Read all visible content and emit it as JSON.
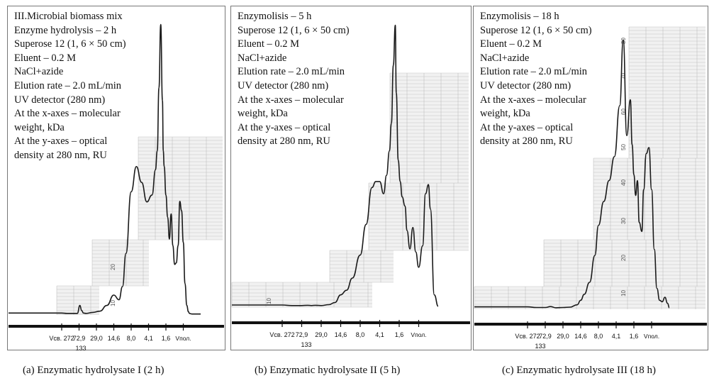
{
  "panels": [
    {
      "caption": "(a) Enzymatic hydrolysate I (2 h)",
      "info": [
        "III.Microbial biomass mix",
        "Enzyme hydrolysis – 2 h",
        "Superose 12 (1, 6 × 50 cm)",
        "Eluent – 0.2 M",
        "NaCl+azide",
        "Elution rate – 2.0 mL/min",
        "UV detector (280 nm)",
        "At the x-axes – molecular",
        "weight, kDa",
        "At the y-axes – optical",
        "density at 280 nm, RU"
      ],
      "grid_labels": [
        "20",
        "10"
      ]
    },
    {
      "caption": "(b) Enzymatic hydrolysate II (5 h)",
      "info": [
        "Enzymolisis – 5 h",
        "Superose 12 (1, 6 × 50 cm)",
        "Eluent – 0.2 M",
        "NaCl+azide",
        "Elution rate – 2.0 mL/min",
        "UV detector (280 nm)",
        "At the x-axes – molecular",
        "weight, kDa",
        "At the y-axes – optical",
        "density at 280 nm, RU"
      ],
      "grid_labels": [
        "10"
      ]
    },
    {
      "caption": "(c)  Enzymatic hydrolysate III (18 h)",
      "info": [
        "Enzymolisis – 18 h",
        "Superose 12 (1, 6 × 50 cm)",
        "Eluent – 0.2 M",
        "NaCl+azide",
        "Elution rate – 2.0 mL/min",
        "UV detector (280 nm)",
        "At the x-axes – molecular",
        "weight, kDa",
        "At the y-axes – optical",
        "density at 280 nm, RU"
      ],
      "grid_labels": [
        "80",
        "70",
        "60",
        "50",
        "40",
        "30",
        "20",
        "10"
      ]
    }
  ],
  "x_ticks": [
    "Vсв. 272",
    "72,9",
    "29,0",
    "14,6",
    "8,0",
    "4,1",
    "1,6",
    "Vпол."
  ],
  "x_sublabel": "133",
  "chart_data": [
    {
      "type": "line",
      "title": "(a) Enzymatic hydrolysate I (2 h)",
      "xlabel": "molecular weight, kDa",
      "ylabel": "optical density at 280 nm, RU",
      "categories": [
        "Vсв. 272",
        "72,9",
        "29,0",
        "14,6",
        "8,0",
        "4,1",
        "1,6",
        "Vпол."
      ],
      "ylim": [
        0,
        90
      ],
      "x": [
        0,
        0.3,
        0.6,
        0.9,
        1.05,
        1.15,
        1.25,
        1.4,
        1.8,
        2.2,
        2.6,
        3.0,
        3.3,
        3.5,
        3.7,
        4.0,
        4.3,
        4.6,
        4.9,
        5.2,
        5.4,
        5.5,
        5.6,
        5.7,
        5.8,
        5.85,
        5.9,
        6.0,
        6.1,
        6.2,
        6.3,
        6.4,
        6.5,
        6.6,
        6.7,
        6.8,
        6.9,
        7.0,
        7.1,
        7.2,
        7.3,
        7.35,
        7.4,
        7.5,
        7.6,
        7.8,
        8.0
      ],
      "y": [
        0.6,
        0.5,
        0.5,
        0.5,
        3.0,
        1.4,
        0.6,
        0.5,
        0.8,
        1.2,
        3.0,
        6.3,
        4.8,
        9.0,
        19.5,
        39.0,
        47.0,
        42.0,
        35.8,
        38.0,
        46.0,
        52.0,
        72.0,
        92.0,
        68.0,
        52.0,
        47.0,
        38.0,
        31.0,
        24.0,
        32.0,
        22.0,
        16.0,
        16.5,
        22.0,
        36.0,
        33.0,
        23.0,
        10.0,
        3.0,
        1.0,
        0.5,
        0.4,
        0.3,
        0.3,
        0.3,
        0.3
      ]
    },
    {
      "type": "line",
      "title": "(b) Enzymatic hydrolysate II (5 h)",
      "xlabel": "molecular weight, kDa",
      "ylabel": "optical density at 280 nm, RU",
      "categories": [
        "Vсв. 272",
        "72,9",
        "29,0",
        "14,6",
        "8,0",
        "4,1",
        "1,6",
        "Vпол."
      ],
      "ylim": [
        0,
        90
      ],
      "x": [
        0,
        0.5,
        1.0,
        1.3,
        1.5,
        1.7,
        2.0,
        2.4,
        2.7,
        3.0,
        3.3,
        3.6,
        4.0,
        4.3,
        4.6,
        4.8,
        5.0,
        5.2,
        5.35,
        5.5,
        5.6,
        5.7,
        5.8,
        5.85,
        5.95,
        6.05,
        6.15,
        6.3,
        6.4,
        6.55,
        6.7,
        6.85,
        7.0,
        7.2,
        7.35,
        7.5,
        7.6,
        7.8,
        8.0
      ],
      "y": [
        0.7,
        0.5,
        0.5,
        0.6,
        0.5,
        0.6,
        0.5,
        0.8,
        1.5,
        4.0,
        5.5,
        9.5,
        17.0,
        27.0,
        39.0,
        41.0,
        41.0,
        37.0,
        43.0,
        51.0,
        60.0,
        79.0,
        92.0,
        70.0,
        48.0,
        41.0,
        36.0,
        33.0,
        25.0,
        19.0,
        26.0,
        18.0,
        13.0,
        20.0,
        37.0,
        40.0,
        32.0,
        4.0,
        0.3
      ]
    },
    {
      "type": "line",
      "title": "(c)  Enzymatic hydrolysate III (18 h)",
      "xlabel": "molecular weight, kDa",
      "ylabel": "optical density at 280 nm, RU",
      "categories": [
        "Vсв. 272",
        "72,9",
        "29,0",
        "14,6",
        "8,0",
        "4,1",
        "1,6",
        "Vпол."
      ],
      "ylim": [
        0,
        90
      ],
      "x": [
        0,
        0.5,
        1.0,
        1.3,
        1.6,
        2.0,
        2.4,
        2.8,
        3.0,
        3.2,
        3.5,
        3.8,
        4.0,
        4.3,
        4.6,
        4.9,
        5.2,
        5.4,
        5.6,
        5.8,
        5.9,
        6.0,
        6.1,
        6.2,
        6.3,
        6.45,
        6.55,
        6.7,
        6.85,
        7.0,
        7.15,
        7.3,
        7.45,
        7.6,
        7.75,
        7.9,
        8.0
      ],
      "y": [
        0.8,
        0.6,
        0.6,
        0.9,
        0.5,
        0.6,
        0.7,
        1.5,
        3.0,
        5.0,
        9.0,
        18.0,
        28.0,
        36.0,
        43.0,
        51.0,
        68.0,
        90.0,
        58.0,
        70.0,
        55.0,
        45.0,
        38.0,
        43.0,
        29.0,
        26.0,
        40.0,
        52.0,
        54.0,
        40.0,
        20.0,
        7.0,
        3.0,
        2.5,
        4.0,
        2.0,
        0.5
      ]
    }
  ]
}
